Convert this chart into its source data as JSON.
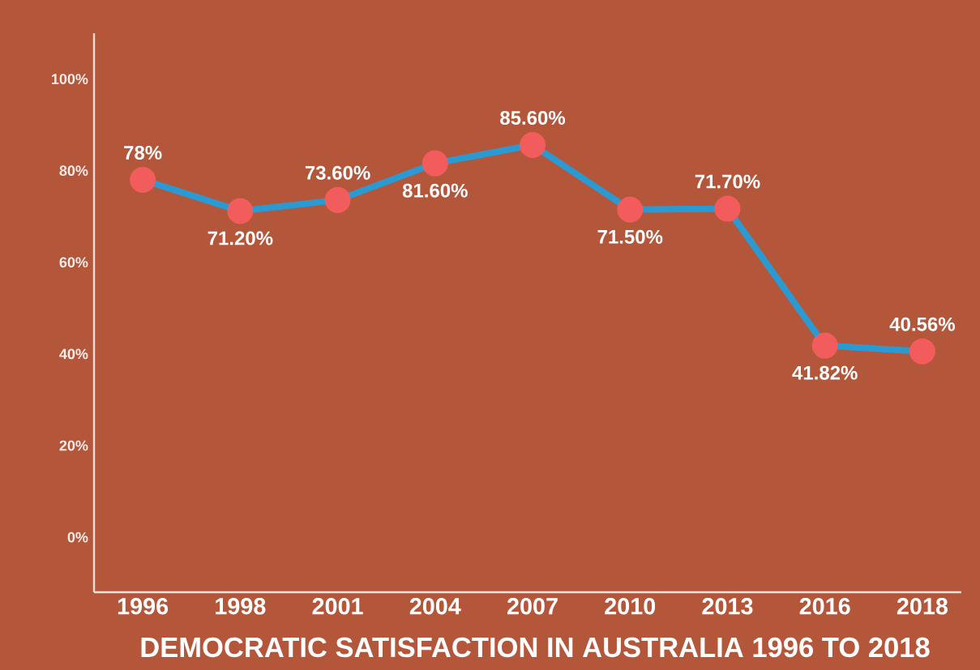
{
  "chart_data": {
    "type": "line",
    "title": "DEMOCRATIC SATISFACTION IN AUSTRALIA 1996 TO 2018",
    "categories": [
      "1996",
      "1998",
      "2001",
      "2004",
      "2007",
      "2010",
      "2013",
      "2016",
      "2018"
    ],
    "series": [
      {
        "color": "#2b9ad3",
        "values": [
          78,
          71.2,
          73.6,
          81.6,
          85.6,
          71.5,
          71.7,
          41.82,
          40.56
        ],
        "value_labels": [
          "78%",
          "71.20%",
          "73.60%",
          "81.60%",
          "85.60%",
          "71.50%",
          "71.70%",
          "41.82%",
          "40.56%"
        ]
      }
    ],
    "marker": "circle",
    "ylim": [
      -12,
      110
    ],
    "yticks": [
      {
        "value": 0,
        "label": "0%"
      },
      {
        "value": 20,
        "label": "20%"
      },
      {
        "value": 40,
        "label": "40%"
      },
      {
        "value": 60,
        "label": "60%"
      },
      {
        "value": 80,
        "label": "80%"
      },
      {
        "value": 100,
        "label": "100%"
      }
    ]
  }
}
